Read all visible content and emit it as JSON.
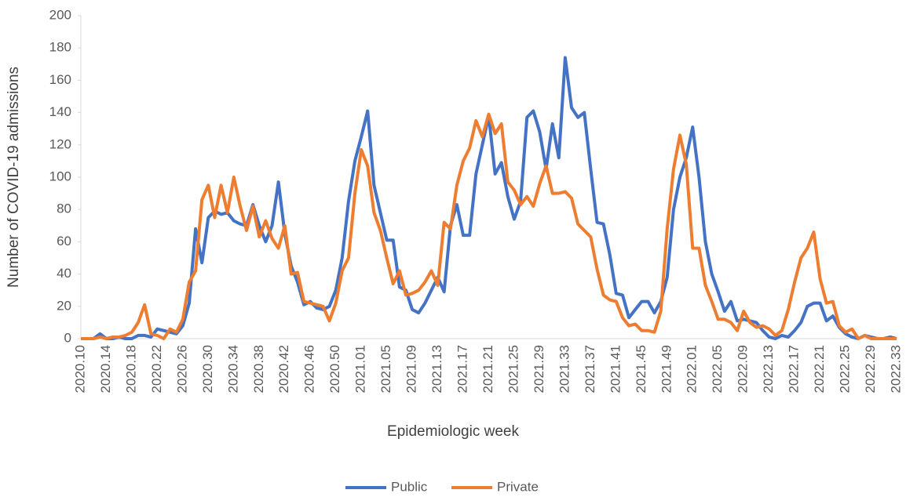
{
  "chart_data": {
    "type": "line",
    "x_label": "Epidemiologic week",
    "y_label": "Number of COVID-19 admissions",
    "categories": [
      "2020.10",
      null,
      null,
      null,
      "2020.14",
      null,
      null,
      null,
      "2020.18",
      null,
      null,
      null,
      "2020.22",
      null,
      null,
      null,
      "2020.26",
      null,
      null,
      null,
      "2020.30",
      null,
      null,
      null,
      "2020.34",
      null,
      null,
      null,
      "2020.38",
      null,
      null,
      null,
      "2020.42",
      null,
      null,
      null,
      "2020.46",
      null,
      null,
      null,
      "2020.50",
      null,
      null,
      null,
      "2021.01",
      null,
      null,
      null,
      "2021.05",
      null,
      null,
      null,
      "2021.09",
      null,
      null,
      null,
      "2021.13",
      null,
      null,
      null,
      "2021.17",
      null,
      null,
      null,
      "2021.21",
      null,
      null,
      null,
      "2021.25",
      null,
      null,
      null,
      "2021.29",
      null,
      null,
      null,
      "2021.33",
      null,
      null,
      null,
      "2021.37",
      null,
      null,
      null,
      "2021.41",
      null,
      null,
      null,
      "2021.45",
      null,
      null,
      null,
      "2021.49",
      null,
      null,
      null,
      "2022.01",
      null,
      null,
      null,
      "2022.05",
      null,
      null,
      null,
      "2022.09",
      null,
      null,
      null,
      "2022.13",
      null,
      null,
      null,
      "2022.17",
      null,
      null,
      null,
      "2022.21",
      null,
      null,
      null,
      "2022.25",
      null,
      null,
      null,
      "2022.29",
      null,
      null,
      null,
      "2022.33"
    ],
    "series": [
      {
        "name": "Public",
        "color": "#4472c4",
        "values": [
          0,
          0,
          0,
          3,
          0,
          0,
          1,
          0,
          0,
          2,
          2,
          1,
          6,
          5,
          4,
          3,
          8,
          22,
          68,
          47,
          75,
          79,
          77,
          78,
          73,
          71,
          70,
          83,
          70,
          60,
          70,
          97,
          65,
          45,
          35,
          21,
          23,
          19,
          18,
          20,
          30,
          50,
          85,
          110,
          125,
          141,
          95,
          78,
          61,
          61,
          32,
          30,
          18,
          16,
          22,
          30,
          38,
          29,
          70,
          83,
          64,
          64,
          102,
          120,
          138,
          102,
          109,
          88,
          74,
          85,
          137,
          141,
          128,
          105,
          133,
          112,
          174,
          143,
          137,
          140,
          105,
          72,
          71,
          52,
          28,
          27,
          13,
          18,
          23,
          23,
          16,
          23,
          38,
          80,
          100,
          112,
          131,
          100,
          60,
          40,
          29,
          17,
          23,
          11,
          12,
          11,
          10,
          5,
          1,
          0,
          2,
          1,
          5,
          10,
          20,
          22,
          22,
          11,
          14,
          7,
          3,
          1,
          0,
          2,
          1,
          0,
          0,
          1,
          0
        ]
      },
      {
        "name": "Private",
        "color": "#ed7d31",
        "values": [
          0,
          0,
          0,
          1,
          0,
          1,
          1,
          2,
          4,
          10,
          21,
          3,
          2,
          0,
          6,
          4,
          12,
          35,
          42,
          86,
          95,
          75,
          95,
          78,
          100,
          82,
          67,
          82,
          63,
          73,
          62,
          56,
          70,
          40,
          41,
          23,
          22,
          21,
          20,
          11,
          22,
          42,
          50,
          90,
          117,
          107,
          78,
          67,
          50,
          34,
          42,
          27,
          28,
          30,
          35,
          42,
          33,
          72,
          68,
          95,
          110,
          118,
          135,
          125,
          139,
          127,
          133,
          97,
          92,
          83,
          88,
          82,
          96,
          107,
          90,
          90,
          91,
          87,
          71,
          67,
          63,
          43,
          27,
          24,
          23,
          13,
          8,
          9,
          5,
          5,
          4,
          17,
          68,
          105,
          126,
          108,
          56,
          56,
          33,
          23,
          12,
          12,
          10,
          5,
          17,
          10,
          7,
          8,
          6,
          2,
          5,
          18,
          35,
          50,
          56,
          66,
          37,
          22,
          23,
          8,
          4,
          6,
          0,
          2,
          0,
          0,
          0,
          0,
          0
        ]
      }
    ],
    "ylim": [
      0,
      200
    ],
    "yticks": [
      0,
      20,
      40,
      60,
      80,
      100,
      120,
      140,
      160,
      180,
      200
    ],
    "grid": false,
    "legend": "bottom"
  }
}
